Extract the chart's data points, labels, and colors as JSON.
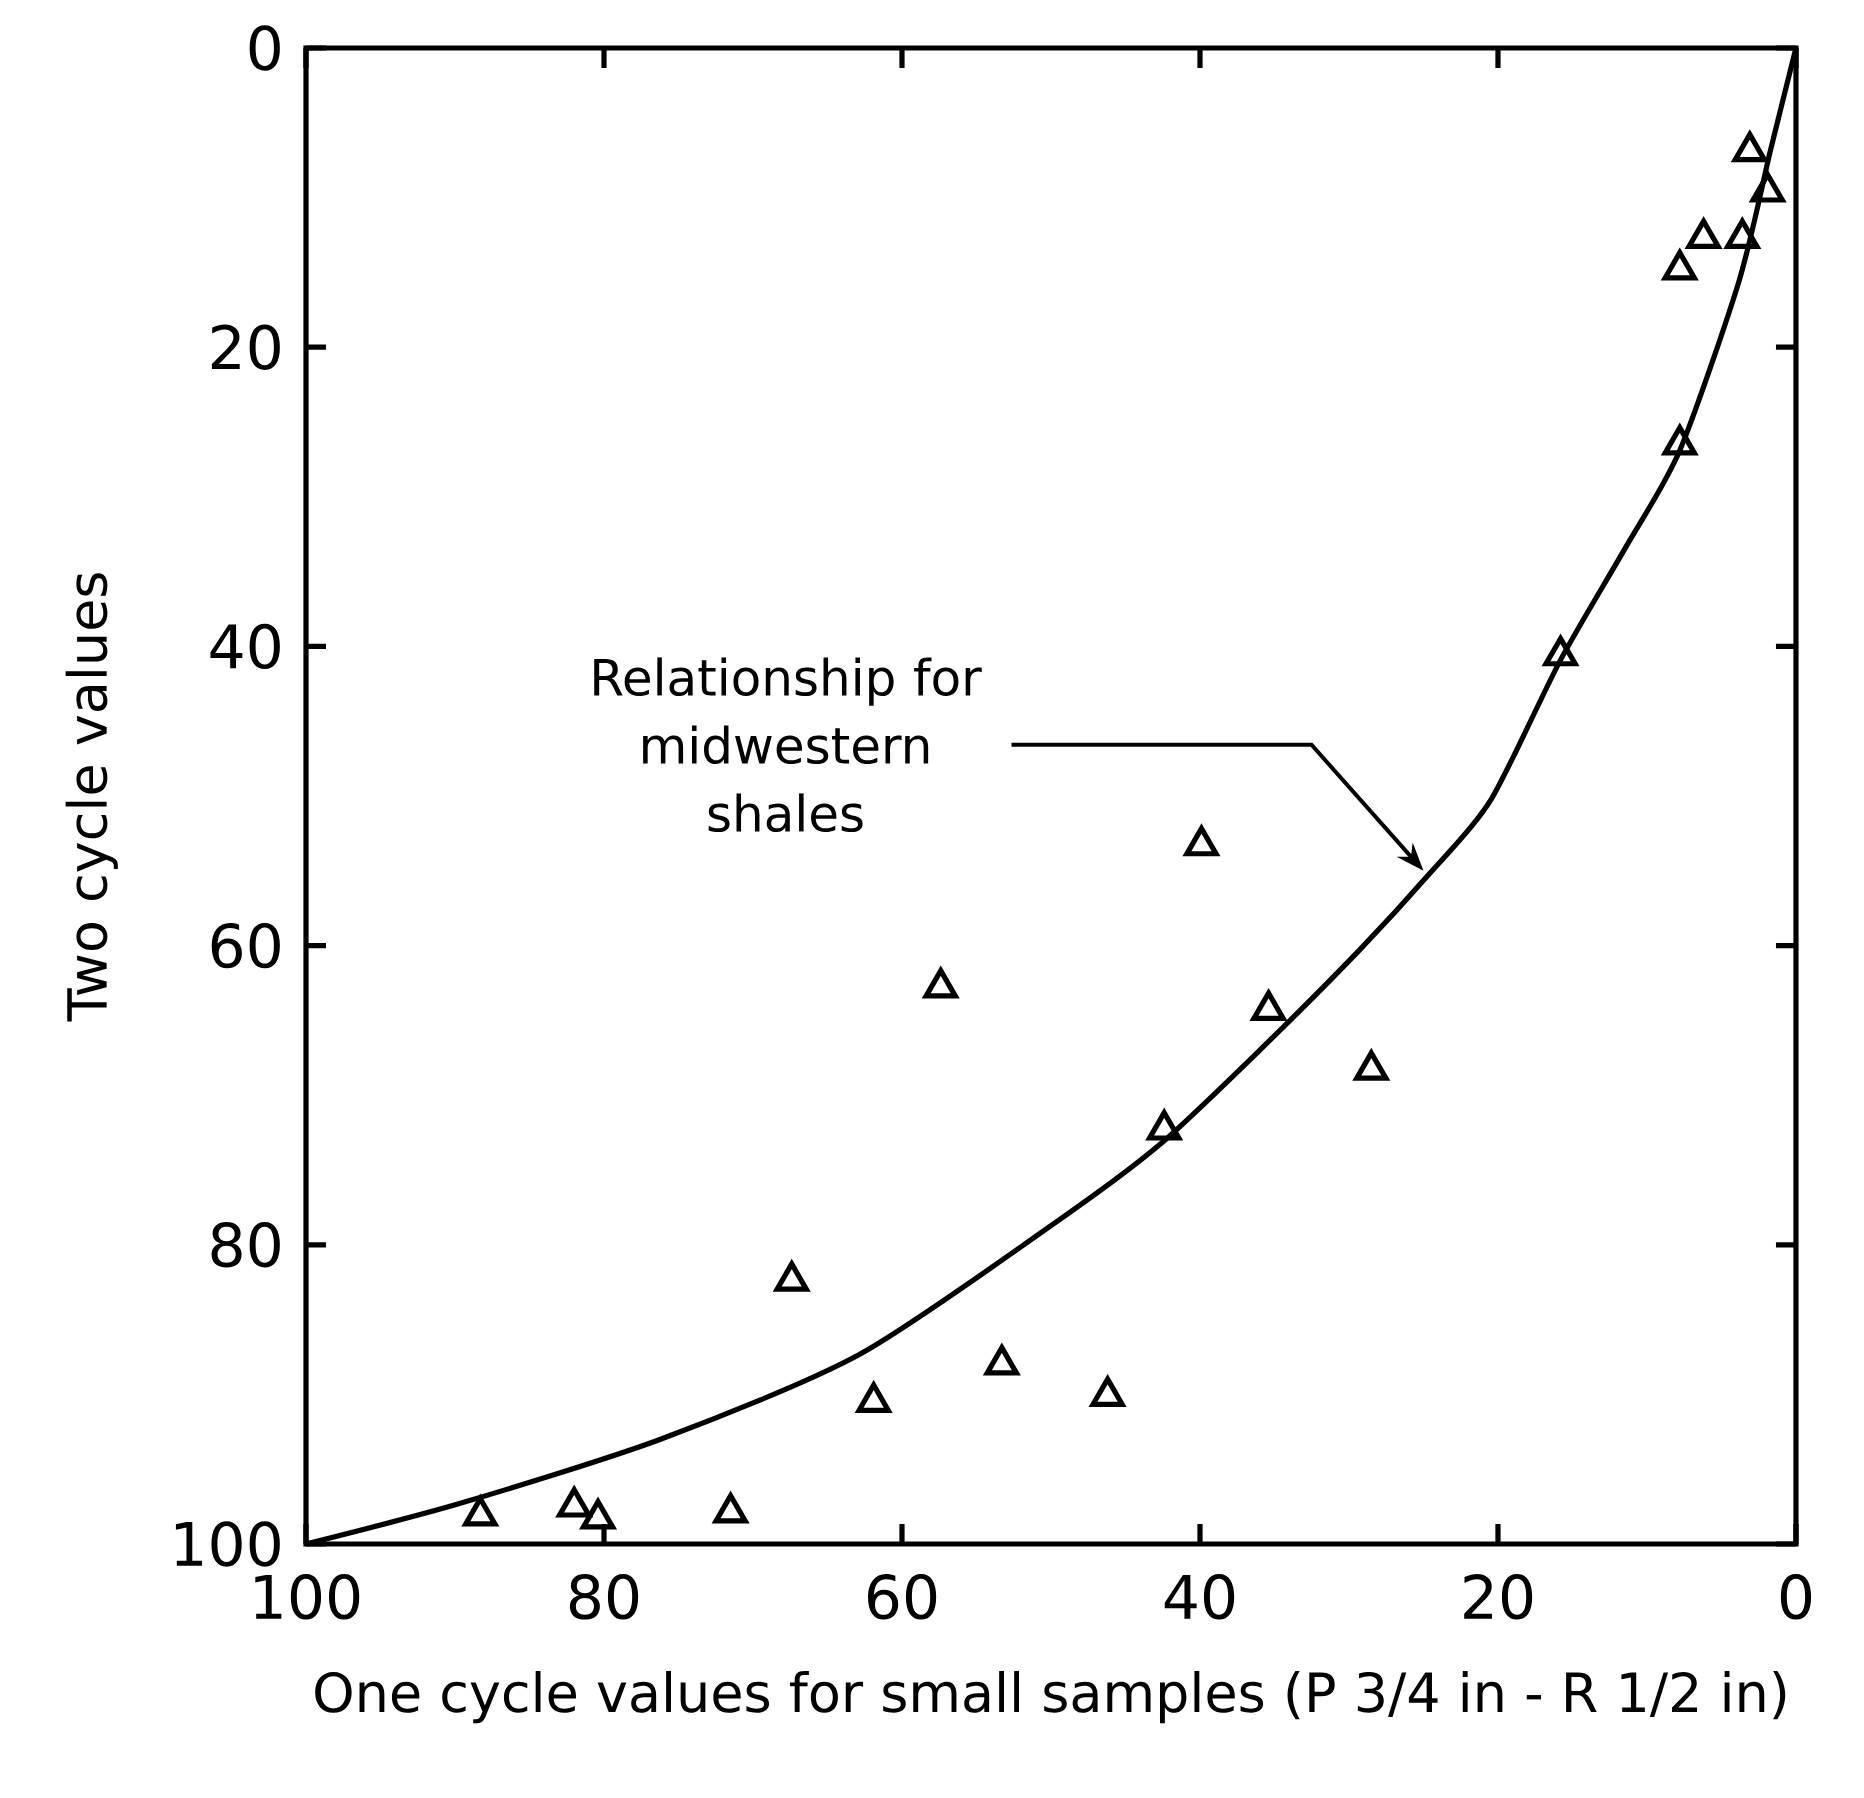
{
  "chart_data": {
    "type": "scatter",
    "xlabel": "One cycle values for small samples (P 3/4 in - R 1/2 in)",
    "ylabel": "Two cycle values",
    "xlim": [
      100,
      0
    ],
    "ylim": [
      100,
      0
    ],
    "xticks": [
      100,
      80,
      60,
      40,
      20,
      0
    ],
    "yticks": [
      0,
      20,
      40,
      60,
      80,
      100
    ],
    "marker": "triangle",
    "grid": false,
    "series": [
      {
        "color": "#000000",
        "x": [
          3.1,
          1.9,
          6.2,
          3.6,
          7.8,
          7.8,
          15.8,
          39.9,
          57.4,
          35.4,
          28.5,
          42.4,
          67.4,
          53.3,
          61.9,
          46.2,
          88.3,
          82.0,
          80.4,
          71.5
        ],
        "values": [
          6.9,
          9.6,
          12.7,
          12.7,
          14.8,
          26.5,
          40.6,
          53.3,
          62.8,
          64.3,
          68.3,
          72.3,
          82.4,
          88.0,
          90.5,
          90.1,
          98.1,
          97.5,
          98.3,
          97.9
        ]
      },
      {
        "type": "line",
        "marker": "none",
        "color": "#000000",
        "x": [
          100,
          89.7,
          76.2,
          62.8,
          49.4,
          42.7,
          36.0,
          29.3,
          24.6,
          20.5,
          15.8,
          11.5,
          7.8,
          3.8,
          1.7,
          0
        ],
        "values": [
          100,
          97.3,
          93.0,
          87.3,
          78.3,
          73.3,
          67.0,
          60.3,
          55.2,
          50.3,
          40.9,
          33.5,
          26.9,
          15.5,
          6.8,
          0
        ]
      }
    ],
    "annotations": [
      {
        "text": "Relationship for midwestern shales",
        "x": 25,
        "y": 55
      }
    ]
  }
}
